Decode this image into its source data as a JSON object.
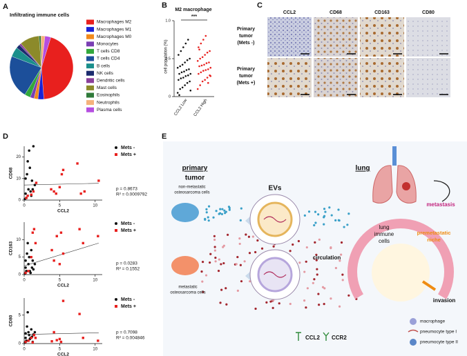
{
  "figure": {
    "panels": [
      "A",
      "B",
      "C",
      "D",
      "E"
    ]
  },
  "chart_data": [
    {
      "type": "pie",
      "title": "Infiltrating immune cells",
      "categories": [
        "Macrophages M2",
        "Macrophages M1",
        "Macrophages M0",
        "Monocytes",
        "T cells CD8",
        "T cells CD4",
        "B cells",
        "NK cells",
        "Dendritic cells",
        "Mast cells",
        "Eosinophils",
        "Neutrophils",
        "Plasma cells"
      ],
      "values": [
        44,
        3,
        2,
        2,
        3,
        22,
        5,
        2,
        1,
        10,
        1,
        2,
        3
      ],
      "colors": [
        "#e8201e",
        "#1a22d6",
        "#f28a1c",
        "#7a3fb3",
        "#32a83c",
        "#1c4f9a",
        "#1b8f8c",
        "#1b2b6e",
        "#8a3f9a",
        "#8c8a2a",
        "#2f7a3a",
        "#f5b27c",
        "#b54ee0"
      ]
    },
    {
      "type": "strip",
      "title": "M2 macrophage",
      "y_label": "cell population (%)",
      "annotation": "***",
      "categories": [
        "CCL2 Low",
        "CCL2 High"
      ],
      "ylim": [
        0,
        1
      ],
      "yticks": [
        0,
        0.5,
        {
          "value": 1,
          "label": "1.0"
        }
      ],
      "series": [
        {
          "color": "#111111",
          "values": [
            0.05,
            0.1,
            0.12,
            0.15,
            0.18,
            0.2,
            0.22,
            0.24,
            0.25,
            0.27,
            0.28,
            0.3,
            0.3,
            0.32,
            0.33,
            0.35,
            0.36,
            0.38,
            0.4,
            0.42,
            0.45,
            0.48,
            0.5,
            0.55,
            0.6,
            0.65,
            0.7,
            0.75,
            0.08,
            0.02
          ]
        },
        {
          "color": "#e8201e",
          "values": [
            0.1,
            0.15,
            0.2,
            0.22,
            0.25,
            0.28,
            0.3,
            0.32,
            0.34,
            0.35,
            0.36,
            0.38,
            0.4,
            0.41,
            0.42,
            0.44,
            0.45,
            0.47,
            0.5,
            0.52,
            0.55,
            0.58,
            0.6,
            0.65,
            0.7,
            0.75,
            0.8,
            0.18,
            0.27,
            0.62
          ]
        }
      ]
    },
    {
      "type": "scatter",
      "y_label": "CD68",
      "x_label": "CCL2",
      "xlim": [
        0,
        11
      ],
      "xticks": [
        0,
        5,
        10
      ],
      "ylim": [
        0,
        25
      ],
      "yticks": [
        0,
        10,
        20
      ],
      "series": [
        {
          "name": "Mets -",
          "color": "#111111",
          "x": [
            0.1,
            0.2,
            0.2,
            0.3,
            0.4,
            0.5,
            0.6,
            0.7,
            0.8,
            0.9,
            1.0,
            1.1,
            1.2,
            1.3,
            1.5
          ],
          "values": [
            0.5,
            3,
            10,
            1,
            12,
            18,
            5,
            23,
            15,
            4,
            2,
            9,
            5,
            25,
            7
          ]
        },
        {
          "name": "Mets +",
          "color": "#e8201e",
          "x": [
            0.3,
            0.5,
            1.0,
            1.3,
            1.7,
            3.8,
            4.2,
            4.5,
            5.0,
            5.3,
            5.5,
            7.5,
            8.0,
            8.5,
            10.5
          ],
          "values": [
            1,
            2,
            2.5,
            4,
            8,
            5,
            4,
            3,
            6,
            12,
            14,
            17,
            3,
            4,
            9
          ]
        }
      ],
      "fit": {
        "x": [
          0,
          10.5
        ],
        "values": [
          7,
          7.8
        ]
      },
      "annotations": [
        "p = 0.8673",
        "R² = 0.0009792"
      ]
    },
    {
      "type": "scatter",
      "y_label": "CD163",
      "x_label": "CCL2",
      "xlim": [
        0,
        11
      ],
      "xticks": [
        0,
        5,
        10
      ],
      "ylim": [
        0,
        15
      ],
      "yticks": [
        0,
        5,
        10
      ],
      "series": [
        {
          "name": "Mets -",
          "color": "#111111",
          "x": [
            0.1,
            0.2,
            0.2,
            0.3,
            0.4,
            0.5,
            0.6,
            0.7,
            0.8,
            0.9,
            1.0,
            1.1,
            1.2,
            1.3,
            1.5
          ],
          "values": [
            0.3,
            2,
            4,
            1,
            6,
            9,
            3,
            5,
            1,
            0.5,
            7,
            2,
            4,
            1.5,
            3
          ]
        },
        {
          "name": "Mets +",
          "color": "#e8201e",
          "x": [
            0.2,
            0.6,
            1.0,
            1.2,
            1.4,
            1.6,
            3.9,
            4.2,
            4.6,
            5.0,
            5.2,
            5.5,
            7.8,
            8.3,
            10.4
          ],
          "values": [
            0.5,
            1,
            5,
            12,
            13,
            9,
            7,
            4,
            11,
            3,
            12,
            6,
            13,
            9,
            11
          ]
        }
      ],
      "fit": {
        "x": [
          0,
          10.5
        ],
        "values": [
          2.5,
          9
        ]
      },
      "annotations": [
        "p = 0.0283",
        "R² = 0.1552"
      ]
    },
    {
      "type": "scatter",
      "y_label": "CD80",
      "x_label": "CCL2",
      "xlim": [
        0,
        11
      ],
      "xticks": [
        0,
        5,
        10
      ],
      "ylim": [
        0,
        8
      ],
      "yticks": [
        0,
        5
      ],
      "series": [
        {
          "name": "Mets -",
          "color": "#111111",
          "x": [
            0.1,
            0.2,
            0.2,
            0.3,
            0.4,
            0.5,
            0.6,
            0.7,
            0.8,
            0.9,
            1.0,
            1.1,
            1.2,
            1.3,
            1.5
          ],
          "values": [
            0.2,
            1,
            1.8,
            0.5,
            3,
            5.5,
            2,
            1.5,
            0.8,
            1,
            2.5,
            1.2,
            0.3,
            1.6,
            2
          ]
        },
        {
          "name": "Mets +",
          "color": "#e8201e",
          "x": [
            0.2,
            0.6,
            1.0,
            1.2,
            1.4,
            1.6,
            3.9,
            4.2,
            4.6,
            5.0,
            5.2,
            5.5,
            7.8,
            8.3,
            10.4
          ],
          "values": [
            0.3,
            0.5,
            1,
            0.2,
            1.5,
            1,
            0.4,
            2,
            0.6,
            0.8,
            0.3,
            7.5,
            5.2,
            1,
            0.5
          ]
        }
      ],
      "fit": {
        "x": [
          0,
          10.5
        ],
        "values": [
          1.6,
          1.9
        ]
      },
      "annotations": [
        "p = 0.7098",
        "R² = 0.004846"
      ]
    }
  ],
  "panel_c": {
    "columns": [
      "CCL2",
      "CD68",
      "CD163",
      "CD80"
    ],
    "rows": [
      [
        "Primary",
        "tumor",
        "(Mets -)"
      ],
      [
        "Primary",
        "tumor",
        "(Mets +)"
      ]
    ]
  },
  "panel_e": {
    "primary": [
      "primary",
      "tumor"
    ],
    "lung": "lung",
    "evs": "EVs",
    "non_metastatic": [
      "non-metastatic",
      "osteosarcoma cells"
    ],
    "metastatic": [
      "metastatic",
      "osteosarcoma cells"
    ],
    "circulation": "circulation",
    "immune": [
      "lung",
      "immune",
      "cells"
    ],
    "niche": [
      "premetastatic",
      "niche"
    ],
    "metastasis": "metastasis",
    "invasion": "invasion",
    "legend": [
      "macrophage",
      "pneumocyte type I",
      "pneumocyte type II"
    ],
    "ccl2": "CCL2",
    "ccr2": "CCR2"
  }
}
